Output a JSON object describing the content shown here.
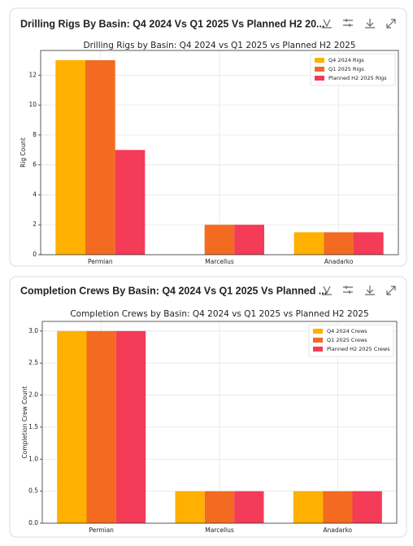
{
  "chart_data": [
    {
      "type": "bar",
      "card_title": "Drilling Rigs By Basin: Q4 2024 Vs Q1 2025 Vs Planned H2 20...",
      "title": "Drilling Rigs by Basin: Q4 2024 vs Q1 2025 vs Planned H2 2025",
      "ylabel": "Rig Count",
      "categories": [
        "Permian",
        "Marcellus",
        "Anadarko"
      ],
      "series": [
        {
          "name": "Q4 2024 Rigs",
          "color": "#ffb000",
          "values": [
            13,
            0,
            1.5
          ]
        },
        {
          "name": "Q1 2025 Rigs",
          "color": "#f26b21",
          "values": [
            13,
            2,
            1.5
          ]
        },
        {
          "name": "Planned H2 2025 Rigs",
          "color": "#f43b57",
          "values": [
            7,
            2,
            1.5
          ]
        }
      ],
      "ylim": [
        0,
        13.65
      ],
      "yticks": [
        0,
        2,
        4,
        6,
        8,
        10,
        12
      ],
      "grid": true,
      "legend": "upper right"
    },
    {
      "type": "bar",
      "card_title": "Completion Crews By Basin: Q4 2024 Vs Q1 2025 Vs Planned ...",
      "title": "Completion Crews by Basin: Q4 2024 vs Q1 2025 vs Planned H2 2025",
      "ylabel": "Completion Crew Count",
      "categories": [
        "Permian",
        "Marcellus",
        "Anadarko"
      ],
      "series": [
        {
          "name": "Q4 2024 Crews",
          "color": "#ffb000",
          "values": [
            3,
            0.5,
            0.5
          ]
        },
        {
          "name": "Q1 2025 Crews",
          "color": "#f26b21",
          "values": [
            3,
            0.5,
            0.5
          ]
        },
        {
          "name": "Planned H2 2025 Crews",
          "color": "#f43b57",
          "values": [
            3,
            0.5,
            0.5
          ]
        }
      ],
      "ylim": [
        0,
        3.15
      ],
      "yticks": [
        {
          "value": 0,
          "label": "0.0"
        },
        0.5,
        {
          "value": 1,
          "label": "1.0"
        },
        1.5,
        {
          "value": 2,
          "label": "2.0"
        },
        2.5,
        {
          "value": 3,
          "label": "3.0"
        }
      ],
      "grid": true,
      "legend": "upper right"
    }
  ]
}
